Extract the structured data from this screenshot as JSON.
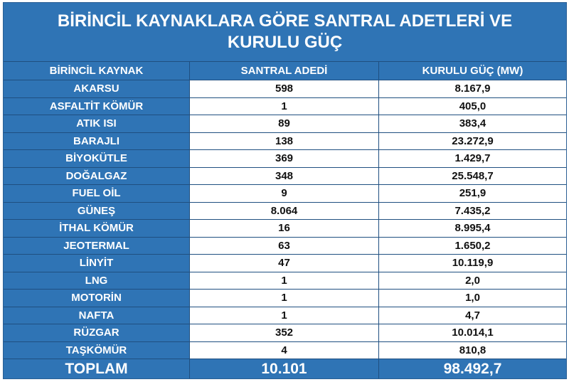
{
  "title": {
    "line1": "BİRİNCİL KAYNAKLARA GÖRE SANTRAL ADETLERİ VE",
    "line2": "KURULU GÜÇ"
  },
  "headers": [
    "BİRİNCİL KAYNAK",
    "SANTRAL ADEDİ",
    "KURULU GÜÇ (MW)"
  ],
  "rows": [
    {
      "source": "AKARSU",
      "count": "598",
      "capacity": "8.167,9"
    },
    {
      "source": "ASFALTİT KÖMÜR",
      "count": "1",
      "capacity": "405,0"
    },
    {
      "source": "ATIK ISI",
      "count": "89",
      "capacity": "383,4"
    },
    {
      "source": "BARAJLI",
      "count": "138",
      "capacity": "23.272,9"
    },
    {
      "source": "BİYOKÜTLE",
      "count": "369",
      "capacity": "1.429,7"
    },
    {
      "source": "DOĞALGAZ",
      "count": "348",
      "capacity": "25.548,7"
    },
    {
      "source": "FUEL OİL",
      "count": "9",
      "capacity": "251,9"
    },
    {
      "source": "GÜNEŞ",
      "count": "8.064",
      "capacity": "7.435,2"
    },
    {
      "source": "İTHAL KÖMÜR",
      "count": "16",
      "capacity": "8.995,4"
    },
    {
      "source": "JEOTERMAL",
      "count": "63",
      "capacity": "1.650,2"
    },
    {
      "source": "LİNYİT",
      "count": "47",
      "capacity": "10.119,9"
    },
    {
      "source": "LNG",
      "count": "1",
      "capacity": "2,0"
    },
    {
      "source": "MOTORİN",
      "count": "1",
      "capacity": "1,0"
    },
    {
      "source": "NAFTA",
      "count": "1",
      "capacity": "4,7"
    },
    {
      "source": "RÜZGAR",
      "count": "352",
      "capacity": "10.014,1"
    },
    {
      "source": "TAŞKÖMÜR",
      "count": "4",
      "capacity": "810,8"
    }
  ],
  "total": {
    "label": "TOPLAM",
    "count": "10.101",
    "capacity": "98.492,7"
  },
  "colors": {
    "header_blue": "#2f74b5",
    "cell_white": "#ffffff",
    "text_dark": "#111111"
  }
}
